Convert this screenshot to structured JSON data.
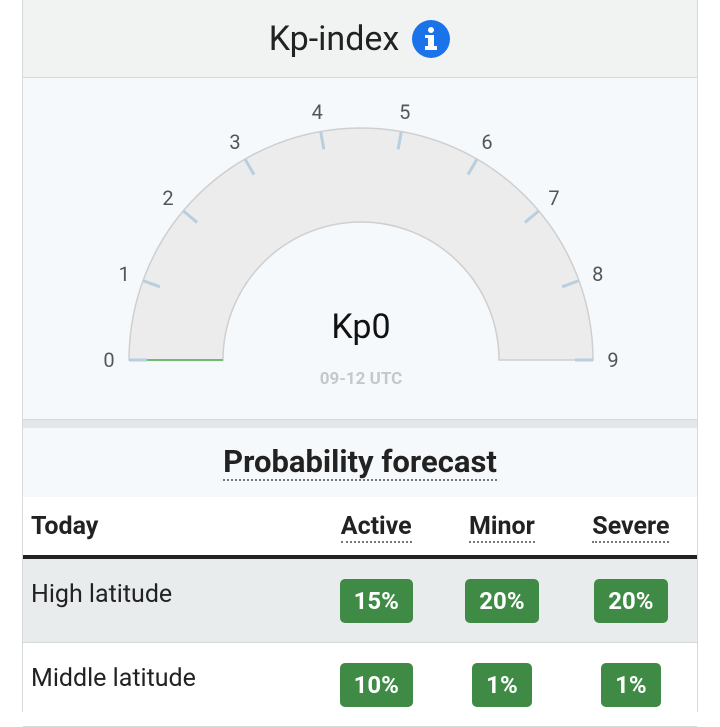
{
  "header": {
    "title": "Kp-index"
  },
  "gauge": {
    "label": "Kp0",
    "value": 0,
    "time": "09-12 UTC",
    "range": [
      0,
      9
    ],
    "ticks": [
      0,
      1,
      2,
      3,
      4,
      5,
      6,
      7,
      8,
      9
    ],
    "color": "#4caf50"
  },
  "forecast": {
    "title": "Probability forecast",
    "columns": [
      "Today",
      "Active",
      "Minor",
      "Severe"
    ],
    "rows": [
      [
        "High latitude",
        "15%",
        "20%",
        "20%"
      ],
      [
        "Middle latitude",
        "10%",
        "1%",
        "1%"
      ]
    ]
  }
}
